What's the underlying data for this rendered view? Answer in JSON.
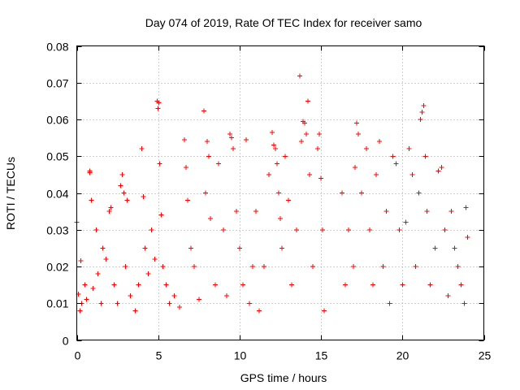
{
  "chart_data": {
    "type": "scatter",
    "title": "Day 074 of 2019, Rate Of TEC Index for receiver samo",
    "xlabel": "GPS time / hours",
    "ylabel": "ROTI / TECUs",
    "xlim": [
      0,
      25
    ],
    "ylim": [
      0,
      0.08
    ],
    "xticks": [
      0,
      5,
      10,
      15,
      20,
      25
    ],
    "xtick_labels": [
      "0",
      "5",
      "10",
      "15",
      "20",
      "25"
    ],
    "yticks": [
      0,
      0.01,
      0.02,
      0.03,
      0.04,
      0.05,
      0.06,
      0.07,
      0.08
    ],
    "ytick_labels": [
      "0",
      "0.01",
      "0.02",
      "0.03",
      "0.04",
      "0.05",
      "0.06",
      "0.07",
      "0.08"
    ],
    "grid": true,
    "marker": "+",
    "color": "#ff0000",
    "series": [
      {
        "name": "ROTI",
        "points": [
          [
            0.0,
            0.032
          ],
          [
            0.1,
            0.0125
          ],
          [
            0.2,
            0.008
          ],
          [
            0.25,
            0.0215
          ],
          [
            0.3,
            0.01
          ],
          [
            0.5,
            0.015
          ],
          [
            0.6,
            0.011
          ],
          [
            0.8,
            0.046
          ],
          [
            0.8,
            0.0455
          ],
          [
            0.9,
            0.038
          ],
          [
            1.0,
            0.014
          ],
          [
            1.2,
            0.03
          ],
          [
            1.3,
            0.018
          ],
          [
            1.5,
            0.01
          ],
          [
            1.6,
            0.025
          ],
          [
            1.8,
            0.022
          ],
          [
            2.0,
            0.035
          ],
          [
            2.1,
            0.036
          ],
          [
            2.3,
            0.015
          ],
          [
            2.5,
            0.01
          ],
          [
            2.7,
            0.042
          ],
          [
            2.8,
            0.045
          ],
          [
            2.9,
            0.04
          ],
          [
            3.0,
            0.02
          ],
          [
            3.1,
            0.038
          ],
          [
            3.3,
            0.012
          ],
          [
            3.6,
            0.008
          ],
          [
            3.8,
            0.015
          ],
          [
            4.0,
            0.052
          ],
          [
            4.1,
            0.039
          ],
          [
            4.2,
            0.025
          ],
          [
            4.4,
            0.018
          ],
          [
            4.6,
            0.03
          ],
          [
            4.8,
            0.022
          ],
          [
            4.95,
            0.065
          ],
          [
            5.0,
            0.063
          ],
          [
            5.05,
            0.0645
          ],
          [
            5.1,
            0.048
          ],
          [
            5.2,
            0.034
          ],
          [
            5.3,
            0.02
          ],
          [
            5.5,
            0.015
          ],
          [
            5.7,
            0.01
          ],
          [
            6.0,
            0.012
          ],
          [
            6.3,
            0.009
          ],
          [
            6.6,
            0.0545
          ],
          [
            6.7,
            0.047
          ],
          [
            6.8,
            0.038
          ],
          [
            7.0,
            0.025
          ],
          [
            7.2,
            0.02
          ],
          [
            7.5,
            0.011
          ],
          [
            7.8,
            0.0623
          ],
          [
            7.9,
            0.04
          ],
          [
            8.0,
            0.054
          ],
          [
            8.1,
            0.05
          ],
          [
            8.2,
            0.033
          ],
          [
            8.5,
            0.015
          ],
          [
            8.7,
            0.048
          ],
          [
            9.0,
            0.03
          ],
          [
            9.2,
            0.012
          ],
          [
            9.4,
            0.056
          ],
          [
            9.5,
            0.055
          ],
          [
            9.6,
            0.052
          ],
          [
            9.8,
            0.035
          ],
          [
            10.0,
            0.025
          ],
          [
            10.2,
            0.015
          ],
          [
            10.4,
            0.0545
          ],
          [
            10.6,
            0.01
          ],
          [
            10.8,
            0.02
          ],
          [
            11.0,
            0.035
          ],
          [
            11.2,
            0.008
          ],
          [
            11.5,
            0.02
          ],
          [
            11.8,
            0.045
          ],
          [
            12.0,
            0.0565
          ],
          [
            12.1,
            0.053
          ],
          [
            12.2,
            0.052
          ],
          [
            12.3,
            0.048
          ],
          [
            12.4,
            0.04
          ],
          [
            12.5,
            0.033
          ],
          [
            12.6,
            0.025
          ],
          [
            12.8,
            0.05
          ],
          [
            13.0,
            0.038
          ],
          [
            13.2,
            0.015
          ],
          [
            13.5,
            0.03
          ],
          [
            13.7,
            0.0718
          ],
          [
            13.8,
            0.054
          ],
          [
            13.9,
            0.0595
          ],
          [
            14.0,
            0.059
          ],
          [
            14.1,
            0.056
          ],
          [
            14.2,
            0.065
          ],
          [
            14.3,
            0.045
          ],
          [
            14.5,
            0.02
          ],
          [
            14.8,
            0.052
          ],
          [
            14.9,
            0.056
          ],
          [
            15.0,
            0.044
          ],
          [
            15.1,
            0.03
          ],
          [
            15.2,
            0.008
          ],
          [
            16.3,
            0.04
          ],
          [
            16.5,
            0.015
          ],
          [
            16.7,
            0.03
          ],
          [
            17.0,
            0.02
          ],
          [
            17.1,
            0.047
          ],
          [
            17.2,
            0.059
          ],
          [
            17.3,
            0.056
          ],
          [
            17.5,
            0.04
          ],
          [
            17.8,
            0.052
          ],
          [
            18.0,
            0.03
          ],
          [
            18.2,
            0.015
          ],
          [
            18.4,
            0.045
          ],
          [
            18.6,
            0.054
          ],
          [
            18.8,
            0.02
          ],
          [
            19.0,
            0.035
          ],
          [
            19.2,
            0.01
          ],
          [
            19.4,
            0.05
          ],
          [
            19.6,
            0.048
          ],
          [
            19.8,
            0.03
          ],
          [
            20.0,
            0.015
          ],
          [
            20.2,
            0.032
          ],
          [
            20.4,
            0.052
          ],
          [
            20.6,
            0.045
          ],
          [
            20.8,
            0.02
          ],
          [
            21.0,
            0.04
          ],
          [
            21.1,
            0.06
          ],
          [
            21.2,
            0.062
          ],
          [
            21.3,
            0.0638
          ],
          [
            21.4,
            0.05
          ],
          [
            21.5,
            0.035
          ],
          [
            21.7,
            0.015
          ],
          [
            22.0,
            0.025
          ],
          [
            22.2,
            0.046
          ],
          [
            22.4,
            0.047
          ],
          [
            22.6,
            0.03
          ],
          [
            22.8,
            0.012
          ],
          [
            23.0,
            0.035
          ],
          [
            23.2,
            0.025
          ],
          [
            23.4,
            0.02
          ],
          [
            23.6,
            0.015
          ],
          [
            23.8,
            0.01
          ],
          [
            23.9,
            0.036
          ],
          [
            24.0,
            0.028
          ]
        ]
      }
    ]
  }
}
